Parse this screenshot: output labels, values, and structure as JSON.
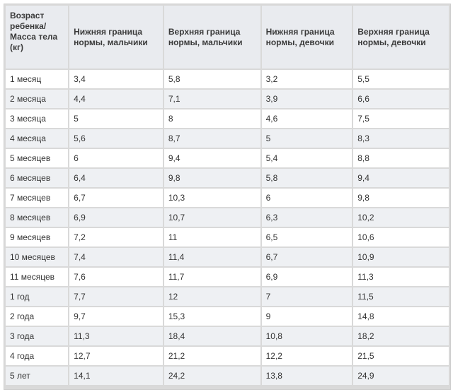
{
  "headers": [
    "Возраст ребенка/ Масса тела (кг)",
    "Нижняя граница нормы, мальчики",
    "Верхняя граница нормы, мальчики",
    "Нижняя граница нормы, девочки",
    "Верхняя граница нормы, девочки"
  ],
  "rows": [
    [
      "1 месяц",
      "3,4",
      "5,8",
      "3,2",
      "5,5"
    ],
    [
      "2 месяца",
      "4,4",
      "7,1",
      "3,9",
      "6,6"
    ],
    [
      "3 месяца",
      "5",
      "8",
      "4,6",
      "7,5"
    ],
    [
      "4 месяца",
      "5,6",
      "8,7",
      "5",
      "8,3"
    ],
    [
      "5 месяцев",
      "6",
      "9,4",
      "5,4",
      "8,8"
    ],
    [
      "6 месяцев",
      "6,4",
      "9,8",
      "5,8",
      "9,4"
    ],
    [
      "7 месяцев",
      "6,7",
      "10,3",
      "6",
      "9,8"
    ],
    [
      "8 месяцев",
      "6,9",
      "10,7",
      "6,3",
      "10,2"
    ],
    [
      "9 месяцев",
      "7,2",
      "11",
      "6,5",
      "10,6"
    ],
    [
      "10 месяцев",
      "7,4",
      "11,4",
      "6,7",
      "10,9"
    ],
    [
      "11 месяцев",
      "7,6",
      "11,7",
      "6,9",
      "11,3"
    ],
    [
      "1 год",
      "7,7",
      "12",
      "7",
      "11,5"
    ],
    [
      "2 года",
      "9,7",
      "15,3",
      "9",
      "14,8"
    ],
    [
      "3 года",
      "11,3",
      "18,4",
      "10,8",
      "18,2"
    ],
    [
      "4 года",
      "12,7",
      "21,2",
      "12,2",
      "21,5"
    ],
    [
      "5 лет",
      "14,1",
      "24,2",
      "13,8",
      "24,9"
    ]
  ]
}
